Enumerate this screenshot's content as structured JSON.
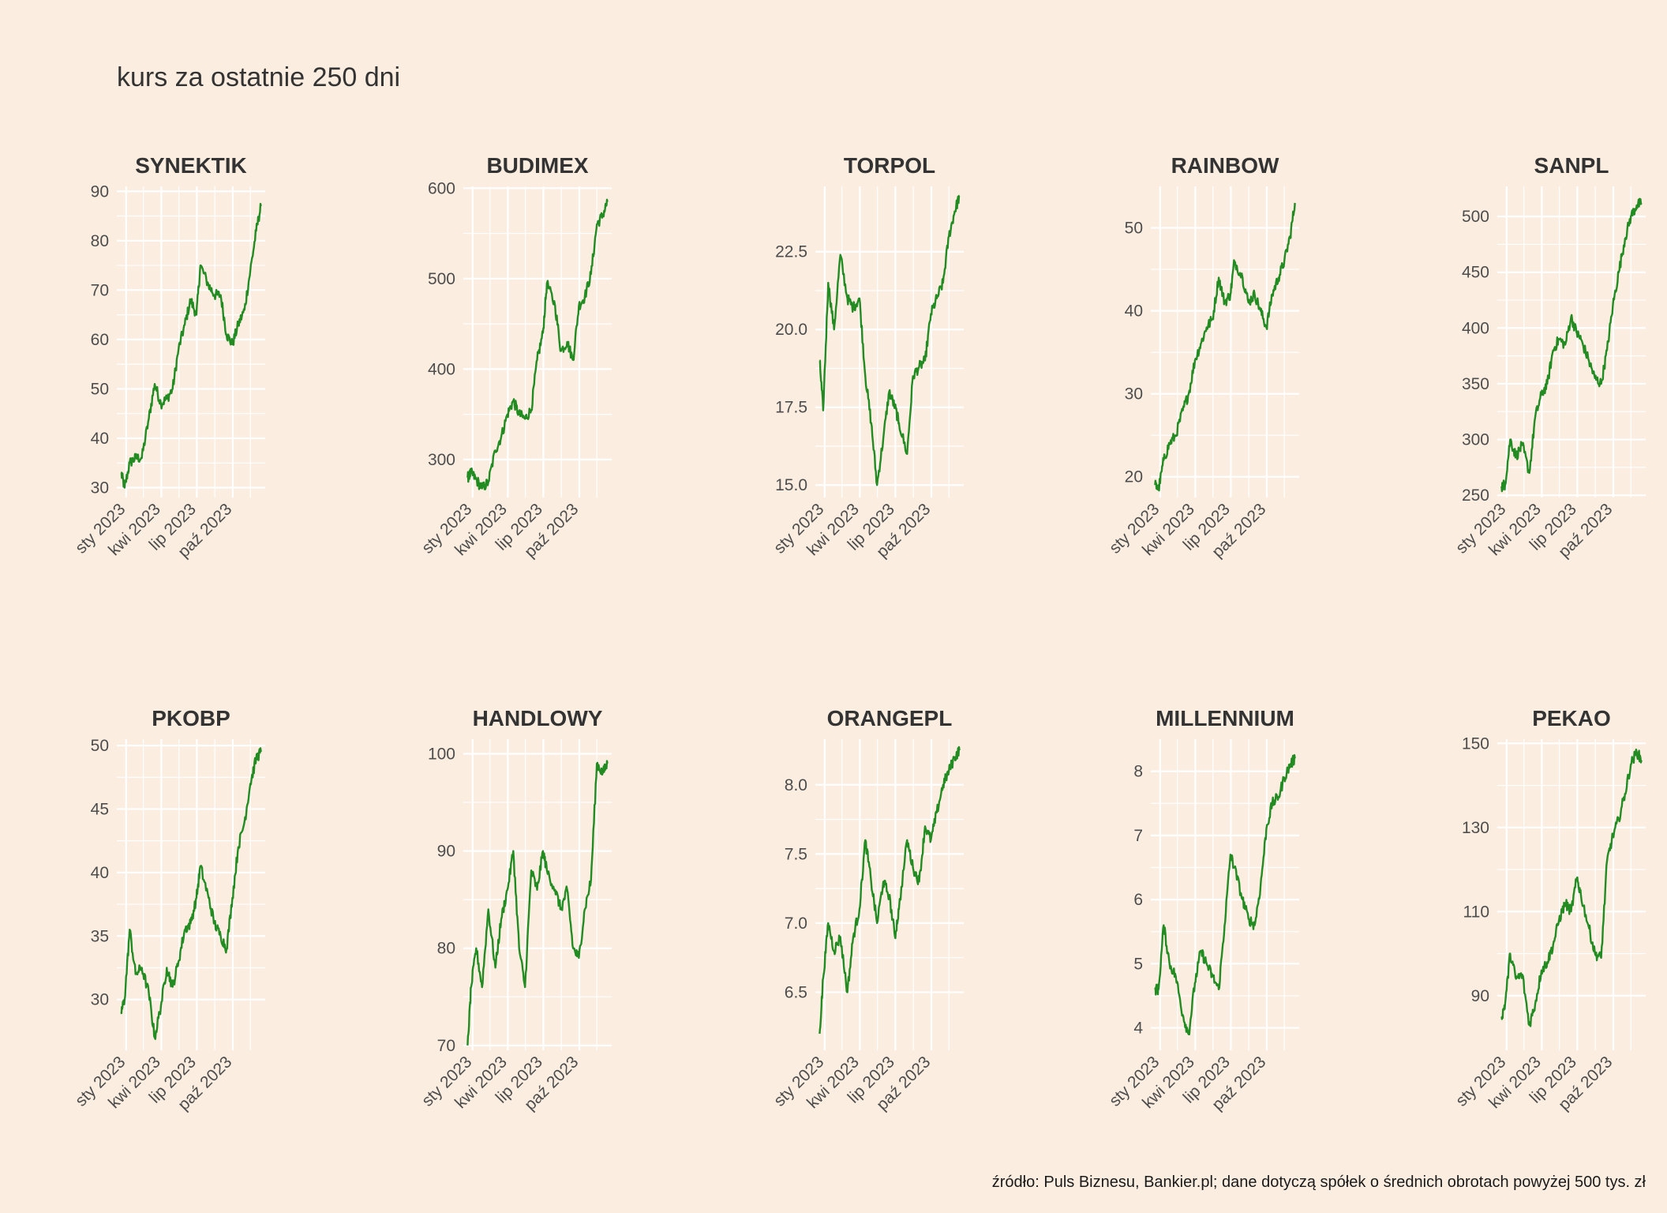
{
  "title": "kurs za ostatnie 250 dni",
  "caption": "źródło: Puls Biznesu, Bankier.pl; dane dotyczą spółek o średnich obrotach powyżej 500 tys. zł",
  "colors": {
    "background": "#fbeee1",
    "line": "#228b22",
    "grid": "#ffffff",
    "text": "#333333",
    "axis_text": "#4d4d4d"
  },
  "chart_data": [
    {
      "type": "line",
      "title": "SYNEKTIK",
      "x_ticks": [
        "sty 2023",
        "kwi 2023",
        "lip 2023",
        "paź 2023"
      ],
      "y_ticks": [
        30,
        40,
        50,
        60,
        70,
        80,
        90
      ],
      "ylim": [
        28,
        91
      ],
      "x": [
        "2022-12-19",
        "2022-12-28",
        "2023-01-10",
        "2023-01-25",
        "2023-02-10",
        "2023-02-28",
        "2023-03-15",
        "2023-03-31",
        "2023-04-15",
        "2023-04-30",
        "2023-05-15",
        "2023-05-31",
        "2023-06-15",
        "2023-06-30",
        "2023-07-10",
        "2023-07-31",
        "2023-08-15",
        "2023-08-31",
        "2023-09-15",
        "2023-09-30",
        "2023-10-15",
        "2023-10-31",
        "2023-11-15",
        "2023-11-30",
        "2023-12-12"
      ],
      "y": [
        33,
        30,
        35,
        36,
        36,
        44,
        51,
        47,
        48,
        50,
        58,
        63,
        68,
        65,
        75,
        71,
        69,
        69,
        61,
        59,
        63,
        66,
        74,
        82,
        87
      ]
    },
    {
      "type": "line",
      "title": "BUDIMEX",
      "x_ticks": [
        "sty 2023",
        "kwi 2023",
        "lip 2023",
        "paź 2023"
      ],
      "y_ticks": [
        300,
        400,
        500,
        600
      ],
      "ylim": [
        258,
        602
      ],
      "x": [
        "2022-12-19",
        "2022-12-28",
        "2023-01-10",
        "2023-01-25",
        "2023-02-10",
        "2023-02-28",
        "2023-03-15",
        "2023-03-31",
        "2023-04-15",
        "2023-04-30",
        "2023-05-15",
        "2023-05-31",
        "2023-06-15",
        "2023-06-30",
        "2023-07-10",
        "2023-07-31",
        "2023-08-15",
        "2023-08-31",
        "2023-09-15",
        "2023-09-30",
        "2023-10-15",
        "2023-10-31",
        "2023-11-15",
        "2023-11-30",
        "2023-12-12"
      ],
      "y": [
        280,
        285,
        278,
        268,
        275,
        310,
        325,
        350,
        365,
        350,
        345,
        355,
        410,
        440,
        495,
        470,
        420,
        430,
        410,
        470,
        480,
        505,
        560,
        570,
        585
      ]
    },
    {
      "type": "line",
      "title": "TORPOL",
      "x_ticks": [
        "sty 2023",
        "kwi 2023",
        "lip 2023",
        "paź 2023"
      ],
      "y_ticks": [
        15.0,
        17.5,
        20.0,
        22.5
      ],
      "ylim": [
        14.6,
        24.6
      ],
      "x": [
        "2022-12-19",
        "2022-12-28",
        "2023-01-10",
        "2023-01-25",
        "2023-02-10",
        "2023-02-28",
        "2023-03-15",
        "2023-03-31",
        "2023-04-15",
        "2023-04-30",
        "2023-05-15",
        "2023-05-31",
        "2023-06-15",
        "2023-06-30",
        "2023-07-10",
        "2023-07-31",
        "2023-08-15",
        "2023-08-31",
        "2023-09-15",
        "2023-09-30",
        "2023-10-15",
        "2023-10-31",
        "2023-11-15",
        "2023-11-30",
        "2023-12-12"
      ],
      "y": [
        19.0,
        17.4,
        21.5,
        20.0,
        22.4,
        21.0,
        20.7,
        21.0,
        18.5,
        17.0,
        15.0,
        16.5,
        18.0,
        17.5,
        17.0,
        16.0,
        18.5,
        18.8,
        19.0,
        20.5,
        21.0,
        21.5,
        23.0,
        23.8,
        24.3
      ]
    },
    {
      "type": "line",
      "title": "RAINBOW",
      "x_ticks": [
        "sty 2023",
        "kwi 2023",
        "lip 2023",
        "paź 2023"
      ],
      "y_ticks": [
        20,
        30,
        40,
        50
      ],
      "ylim": [
        17.5,
        55
      ],
      "x": [
        "2022-12-19",
        "2022-12-28",
        "2023-01-10",
        "2023-01-25",
        "2023-02-10",
        "2023-02-28",
        "2023-03-15",
        "2023-03-31",
        "2023-04-15",
        "2023-04-30",
        "2023-05-15",
        "2023-05-31",
        "2023-06-15",
        "2023-06-30",
        "2023-07-10",
        "2023-07-31",
        "2023-08-15",
        "2023-08-31",
        "2023-09-15",
        "2023-09-30",
        "2023-10-15",
        "2023-10-31",
        "2023-11-15",
        "2023-11-30",
        "2023-12-12"
      ],
      "y": [
        19,
        18.5,
        22,
        24,
        25,
        28,
        30,
        34,
        36,
        38,
        39,
        44,
        41,
        42,
        46,
        44,
        41,
        42,
        40,
        38,
        42,
        44,
        46,
        49,
        53
      ]
    },
    {
      "type": "line",
      "title": "SANPL",
      "x_ticks": [
        "sty 2023",
        "kwi 2023",
        "lip 2023",
        "paź 2023"
      ],
      "y_ticks": [
        250,
        300,
        350,
        400,
        450,
        500
      ],
      "ylim": [
        248,
        527
      ],
      "x": [
        "2022-12-19",
        "2022-12-28",
        "2023-01-10",
        "2023-01-25",
        "2023-02-10",
        "2023-02-28",
        "2023-03-15",
        "2023-03-31",
        "2023-04-15",
        "2023-04-30",
        "2023-05-15",
        "2023-05-31",
        "2023-06-15",
        "2023-06-30",
        "2023-07-10",
        "2023-07-31",
        "2023-08-15",
        "2023-08-31",
        "2023-09-15",
        "2023-09-30",
        "2023-10-15",
        "2023-10-31",
        "2023-11-15",
        "2023-11-30",
        "2023-12-12"
      ],
      "y": [
        258,
        260,
        300,
        285,
        295,
        270,
        320,
        340,
        350,
        380,
        390,
        385,
        410,
        395,
        390,
        370,
        355,
        350,
        380,
        420,
        450,
        480,
        500,
        510,
        512
      ]
    },
    {
      "type": "line",
      "title": "PKOBP",
      "x_ticks": [
        "sty 2023",
        "kwi 2023",
        "lip 2023",
        "paź 2023"
      ],
      "y_ticks": [
        30,
        35,
        40,
        45,
        50
      ],
      "ylim": [
        26,
        50.5
      ],
      "x": [
        "2022-12-19",
        "2022-12-28",
        "2023-01-10",
        "2023-01-25",
        "2023-02-10",
        "2023-02-28",
        "2023-03-15",
        "2023-03-31",
        "2023-04-15",
        "2023-04-30",
        "2023-05-15",
        "2023-05-31",
        "2023-06-15",
        "2023-06-30",
        "2023-07-10",
        "2023-07-31",
        "2023-08-15",
        "2023-08-31",
        "2023-09-15",
        "2023-09-30",
        "2023-10-15",
        "2023-10-31",
        "2023-11-15",
        "2023-11-30",
        "2023-12-12"
      ],
      "y": [
        29,
        30,
        35.5,
        32,
        32.5,
        30.5,
        27,
        29.5,
        32.5,
        31,
        33,
        35.5,
        36,
        38,
        40.5,
        38,
        36,
        35,
        34,
        38,
        42,
        44,
        47,
        49,
        49.5
      ]
    },
    {
      "type": "line",
      "title": "HANDLOWY",
      "x_ticks": [
        "sty 2023",
        "kwi 2023",
        "lip 2023",
        "paź 2023"
      ],
      "y_ticks": [
        70,
        80,
        90,
        100
      ],
      "ylim": [
        69.5,
        101.5
      ],
      "x": [
        "2022-12-19",
        "2022-12-28",
        "2023-01-10",
        "2023-01-25",
        "2023-02-10",
        "2023-02-28",
        "2023-03-15",
        "2023-03-31",
        "2023-04-15",
        "2023-04-30",
        "2023-05-15",
        "2023-05-31",
        "2023-06-15",
        "2023-06-30",
        "2023-07-10",
        "2023-07-31",
        "2023-08-15",
        "2023-08-31",
        "2023-09-15",
        "2023-09-30",
        "2023-10-15",
        "2023-10-31",
        "2023-11-15",
        "2023-11-30",
        "2023-12-12"
      ],
      "y": [
        70,
        76,
        80,
        76,
        84,
        78,
        83,
        86,
        90,
        80,
        76,
        88,
        86,
        90,
        88,
        86,
        84,
        86,
        80,
        79,
        84,
        87,
        99,
        98,
        99
      ]
    },
    {
      "type": "line",
      "title": "ORANGEPL",
      "x_ticks": [
        "sty 2023",
        "kwi 2023",
        "lip 2023",
        "paź 2023"
      ],
      "y_ticks": [
        6.5,
        7.0,
        7.5,
        8.0
      ],
      "ylim": [
        6.08,
        8.33
      ],
      "x": [
        "2022-12-19",
        "2022-12-28",
        "2023-01-10",
        "2023-01-25",
        "2023-02-10",
        "2023-02-28",
        "2023-03-15",
        "2023-03-31",
        "2023-04-15",
        "2023-04-30",
        "2023-05-15",
        "2023-05-31",
        "2023-06-15",
        "2023-06-30",
        "2023-07-10",
        "2023-07-31",
        "2023-08-15",
        "2023-08-31",
        "2023-09-15",
        "2023-09-30",
        "2023-10-15",
        "2023-10-31",
        "2023-11-15",
        "2023-11-30",
        "2023-12-12"
      ],
      "y": [
        6.2,
        6.6,
        7.0,
        6.8,
        6.9,
        6.5,
        6.9,
        7.1,
        7.6,
        7.3,
        7.0,
        7.3,
        7.2,
        6.9,
        7.1,
        7.6,
        7.4,
        7.3,
        7.7,
        7.6,
        7.8,
        8.0,
        8.1,
        8.2,
        8.25
      ]
    },
    {
      "type": "line",
      "title": "MILLENNIUM",
      "x_ticks": [
        "sty 2023",
        "kwi 2023",
        "lip 2023",
        "paź 2023"
      ],
      "y_ticks": [
        4,
        5,
        6,
        7,
        8
      ],
      "ylim": [
        3.65,
        8.5
      ],
      "x": [
        "2022-12-19",
        "2022-12-28",
        "2023-01-10",
        "2023-01-25",
        "2023-02-10",
        "2023-02-28",
        "2023-03-15",
        "2023-03-31",
        "2023-04-15",
        "2023-04-30",
        "2023-05-15",
        "2023-05-31",
        "2023-06-15",
        "2023-06-30",
        "2023-07-10",
        "2023-07-31",
        "2023-08-15",
        "2023-08-31",
        "2023-09-15",
        "2023-09-30",
        "2023-10-15",
        "2023-10-31",
        "2023-11-15",
        "2023-11-30",
        "2023-12-12"
      ],
      "y": [
        4.6,
        4.6,
        5.6,
        5.0,
        4.8,
        4.2,
        3.9,
        4.7,
        5.2,
        5.0,
        4.8,
        4.6,
        5.6,
        6.7,
        6.5,
        6.0,
        5.7,
        5.6,
        6.2,
        7.1,
        7.5,
        7.6,
        7.9,
        8.1,
        8.2
      ]
    },
    {
      "type": "line",
      "title": "PEKAO",
      "x_ticks": [
        "sty 2023",
        "kwi 2023",
        "lip 2023",
        "paź 2023"
      ],
      "y_ticks": [
        90,
        110,
        130,
        150
      ],
      "ylim": [
        77,
        151
      ],
      "x": [
        "2022-12-19",
        "2022-12-28",
        "2023-01-10",
        "2023-01-25",
        "2023-02-10",
        "2023-02-28",
        "2023-03-15",
        "2023-03-31",
        "2023-04-15",
        "2023-04-30",
        "2023-05-15",
        "2023-05-31",
        "2023-06-15",
        "2023-06-30",
        "2023-07-10",
        "2023-07-31",
        "2023-08-15",
        "2023-08-31",
        "2023-09-15",
        "2023-09-30",
        "2023-10-15",
        "2023-10-31",
        "2023-11-15",
        "2023-11-30",
        "2023-12-12"
      ],
      "y": [
        85,
        88,
        100,
        94,
        95,
        83,
        88,
        96,
        98,
        102,
        108,
        112,
        110,
        118,
        114,
        106,
        100,
        99,
        122,
        128,
        132,
        138,
        145,
        148,
        146
      ]
    }
  ]
}
